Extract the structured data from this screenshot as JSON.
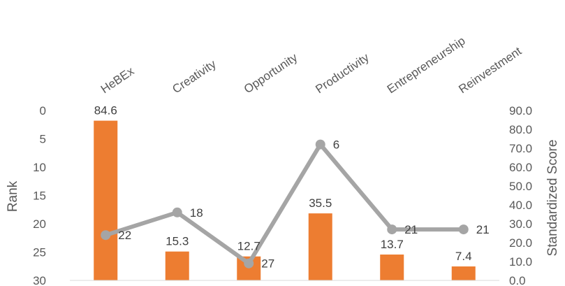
{
  "chart_data": {
    "type": "bar",
    "categories": [
      "HeBEx",
      "Creativity",
      "Opportunity",
      "Productivity",
      "Entrepreneurship",
      "Reinvestment"
    ],
    "series": [
      {
        "type": "bar",
        "axis": "right",
        "values": [
          84.6,
          15.3,
          12.7,
          35.5,
          13.7,
          7.4
        ],
        "labels": [
          "84.6",
          "15.3",
          "12.7",
          "35.5",
          "13.7",
          "7.4"
        ],
        "color": "#ED7D31"
      },
      {
        "type": "line",
        "axis": "left",
        "values": [
          22,
          18,
          27,
          6,
          21,
          21
        ],
        "labels": [
          "22",
          "18",
          "27",
          "6",
          "21",
          "21"
        ],
        "color": "#A5A5A5"
      }
    ],
    "ylabel": "Rank",
    "y2label": "Standardized Score",
    "ylim": [
      30,
      0
    ],
    "y2lim": [
      0,
      90
    ],
    "yticks": [
      "0",
      "5",
      "10",
      "15",
      "20",
      "25",
      "30"
    ],
    "y2ticks": [
      "0.0",
      "10.0",
      "20.0",
      "30.0",
      "40.0",
      "50.0",
      "60.0",
      "70.0",
      "80.0",
      "90.0"
    ],
    "grid": false,
    "legend": "none"
  }
}
